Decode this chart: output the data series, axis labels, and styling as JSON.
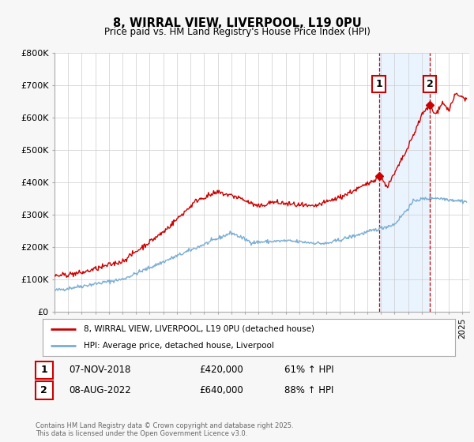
{
  "title": "8, WIRRAL VIEW, LIVERPOOL, L19 0PU",
  "subtitle": "Price paid vs. HM Land Registry's House Price Index (HPI)",
  "background_color": "#f7f7f7",
  "plot_bg_color": "#ffffff",
  "red_color": "#cc0000",
  "blue_color": "#7aadd4",
  "shade_color": "#ddeeff",
  "ylim": [
    0,
    800000
  ],
  "yticks": [
    0,
    100000,
    200000,
    300000,
    400000,
    500000,
    600000,
    700000,
    800000
  ],
  "ytick_labels": [
    "£0",
    "£100K",
    "£200K",
    "£300K",
    "£400K",
    "£500K",
    "£600K",
    "£700K",
    "£800K"
  ],
  "xmin": 1995,
  "xmax": 2025.5,
  "sale1_x": 2018.85,
  "sale1_y": 420000,
  "sale1_label": "1",
  "sale2_x": 2022.6,
  "sale2_y": 640000,
  "sale2_label": "2",
  "legend_line1": "8, WIRRAL VIEW, LIVERPOOL, L19 0PU (detached house)",
  "legend_line2": "HPI: Average price, detached house, Liverpool",
  "table_row1": [
    "1",
    "07-NOV-2018",
    "£420,000",
    "61% ↑ HPI"
  ],
  "table_row2": [
    "2",
    "08-AUG-2022",
    "£640,000",
    "88% ↑ HPI"
  ],
  "footer": "Contains HM Land Registry data © Crown copyright and database right 2025.\nThis data is licensed under the Open Government Licence v3.0."
}
